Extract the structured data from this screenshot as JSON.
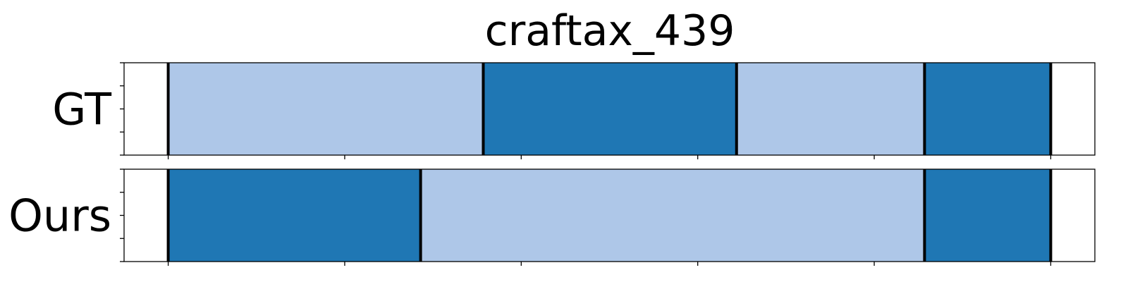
{
  "chart_data": {
    "type": "segmentation-timeline",
    "title": "craftax_439",
    "x_range": [
      -0.05,
      1.05
    ],
    "x_ticks": [
      0,
      0.2,
      0.4,
      0.6,
      0.8,
      1.0
    ],
    "y_ticks_per_row": 5,
    "colors": {
      "dark": "#1f77b4",
      "light": "#aec7e8"
    },
    "rows": [
      {
        "label": "GT",
        "segments": [
          {
            "start": 0.0,
            "end": 0.357,
            "color": "light"
          },
          {
            "start": 0.357,
            "end": 0.644,
            "color": "dark"
          },
          {
            "start": 0.644,
            "end": 0.857,
            "color": "light"
          },
          {
            "start": 0.857,
            "end": 1.0,
            "color": "dark"
          }
        ]
      },
      {
        "label": "Ours",
        "segments": [
          {
            "start": 0.0,
            "end": 0.286,
            "color": "dark"
          },
          {
            "start": 0.286,
            "end": 0.857,
            "color": "light"
          },
          {
            "start": 0.857,
            "end": 1.0,
            "color": "dark"
          }
        ]
      }
    ]
  }
}
